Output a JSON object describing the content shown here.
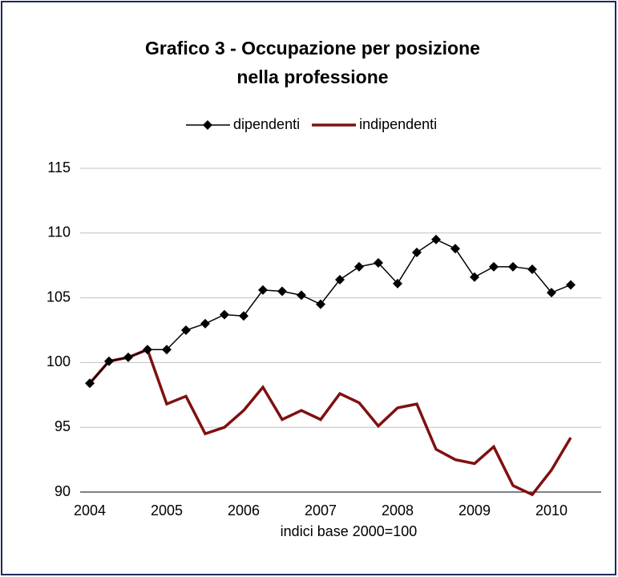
{
  "chart_data": {
    "type": "line",
    "title": [
      "Grafico 3 - Occupazione per posizione",
      "nella professione"
    ],
    "x_label": "indici base 2000=100",
    "categories": [
      "2004",
      null,
      null,
      null,
      "2005",
      null,
      null,
      null,
      "2006",
      null,
      null,
      null,
      "2007",
      null,
      null,
      null,
      "2008",
      null,
      null,
      null,
      "2009",
      null,
      null,
      null,
      "2010",
      null
    ],
    "series": [
      {
        "name": "dipendenti",
        "color": "#000000",
        "marker": "diamond",
        "values": [
          98.4,
          100.1,
          100.4,
          101.0,
          101.0,
          102.5,
          103.0,
          103.7,
          103.6,
          105.6,
          105.5,
          105.2,
          104.5,
          106.4,
          107.4,
          107.7,
          106.1,
          108.5,
          109.5,
          108.8,
          106.6,
          107.4,
          107.4,
          107.2,
          105.4,
          106.0
        ]
      },
      {
        "name": "indipendenti",
        "color": "#7f1010",
        "values": [
          98.4,
          100.1,
          100.4,
          101.0,
          96.8,
          97.4,
          94.5,
          95.0,
          96.3,
          98.1,
          95.6,
          96.3,
          95.6,
          97.6,
          96.9,
          95.1,
          96.5,
          96.8,
          93.3,
          92.5,
          92.2,
          93.5,
          90.5,
          89.8,
          91.7,
          94.2
        ]
      }
    ],
    "ylim": [
      90,
      115
    ],
    "yticks": [
      90,
      95,
      100,
      105,
      110,
      115
    ],
    "grid": true,
    "legend": "top"
  }
}
